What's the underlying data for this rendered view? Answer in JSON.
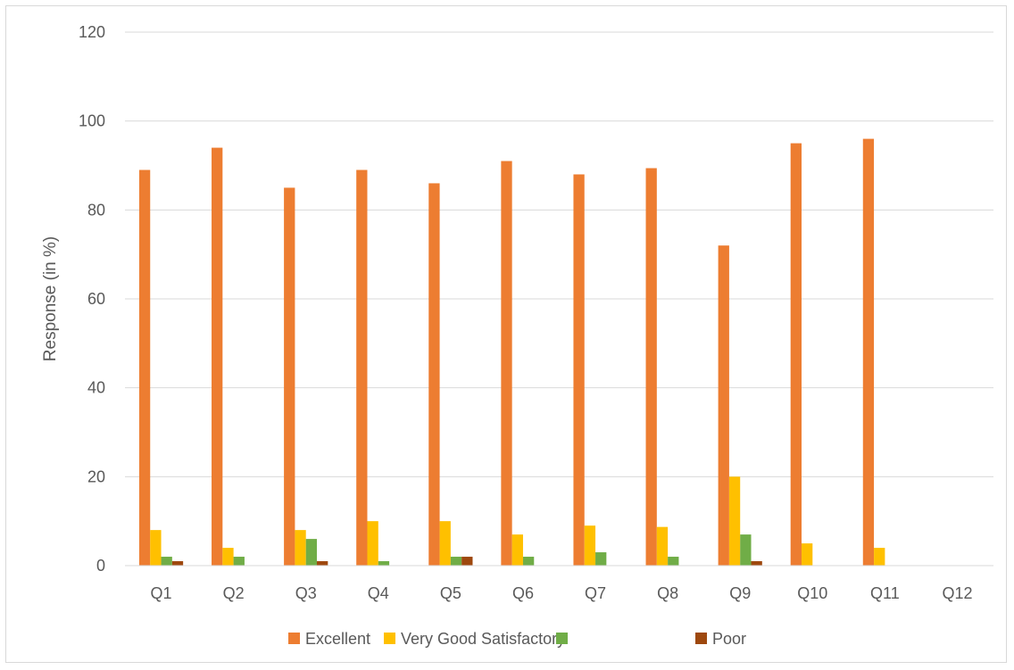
{
  "chart_data": {
    "type": "bar",
    "categories": [
      "Q1",
      "Q2",
      "Q3",
      "Q4",
      "Q5",
      "Q6",
      "Q7",
      "Q8",
      "Q9",
      "Q10",
      "Q11",
      "Q12"
    ],
    "series": [
      {
        "name": "Excellent",
        "color": "#ed7d31",
        "values": [
          89,
          94,
          85,
          89,
          86,
          91,
          88,
          89.4,
          72,
          95,
          96,
          0
        ]
      },
      {
        "name": "Very Good Satisfactory",
        "color": "#ffc000",
        "values": [
          8,
          4,
          8,
          10,
          10,
          7,
          9,
          8.7,
          20,
          5,
          4,
          0
        ]
      },
      {
        "name": "",
        "color": "#70ad47",
        "values": [
          2,
          2,
          6,
          1,
          2,
          2,
          3,
          2,
          7,
          0,
          0,
          0
        ]
      },
      {
        "name": "Poor",
        "color": "#9e480e",
        "values": [
          1,
          0,
          1,
          0,
          2,
          0,
          0,
          0,
          1,
          0,
          0,
          0
        ]
      }
    ],
    "title": "",
    "xlabel": "",
    "ylabel": "Response (in %)",
    "ylim": [
      0,
      120
    ],
    "yticks": [
      0,
      20,
      40,
      60,
      80,
      100,
      120
    ],
    "grid": true,
    "legend_position": "bottom"
  }
}
